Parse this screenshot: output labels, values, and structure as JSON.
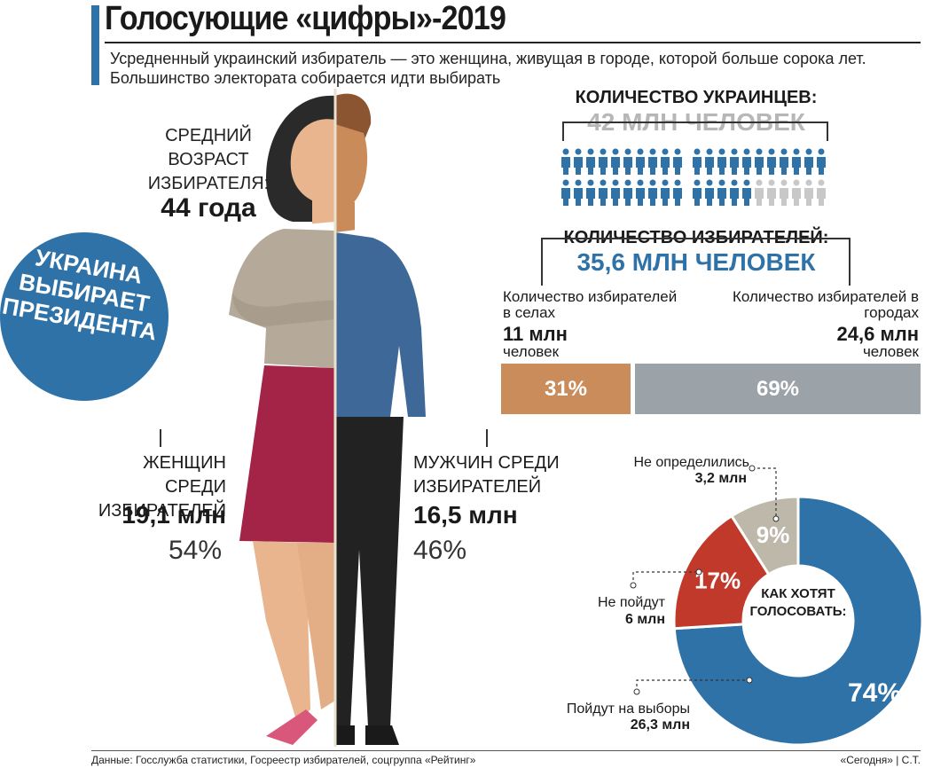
{
  "header": {
    "title": "Голосующие «цифры»-2019",
    "lead": "Усредненный украинский избиратель — это женщина, живущая в городе, которой больше сорока лет. Большинство электората собирается идти выбирать"
  },
  "age": {
    "label": "СРЕДНИЙ ВОЗРАСТ ИЗБИРАТЕЛЯ:",
    "value": "44 года"
  },
  "badge": {
    "text": "УКРАИНА ВЫБИРАЕТ ПРЕЗИДЕНТА"
  },
  "women": {
    "label": "ЖЕНЩИН СРЕДИ ИЗБИРАТЕЛЕЙ",
    "value": "19,1 млн",
    "percent": "54%"
  },
  "men": {
    "label": "МУЖЧИН СРЕДИ ИЗБИРАТЕЛЕЙ",
    "value": "16,5 млн",
    "percent": "46%"
  },
  "population": {
    "label": "КОЛИЧЕСТВО УКРАИНЦЕВ:",
    "value": "42 МЛН ЧЕЛОВЕК",
    "icons_total": 42,
    "icons_voters": 36
  },
  "electorate": {
    "label": "КОЛИЧЕСТВО ИЗБИРАТЕЛЕЙ:",
    "value": "35,6 МЛН ЧЕЛОВЕК",
    "villages": {
      "label": "Количество избирателей в селах",
      "value": "11 млн",
      "unit": "человек",
      "share": "31%"
    },
    "cities": {
      "label": "Количество избирателей в городах",
      "value": "24,6 млн",
      "unit": "человек",
      "share": "69%"
    }
  },
  "chart_data": {
    "type": "pie",
    "center_label": "КАК ХОТЯТ ГОЛОСОВАТЬ:",
    "slices": [
      {
        "name": "Пойдут на выборы",
        "value": 74,
        "label": "74%",
        "amount": "26,3 млн",
        "color": "#2f72a8"
      },
      {
        "name": "Не пойдут",
        "value": 17,
        "label": "17%",
        "amount": "6 млн",
        "color": "#c0392b"
      },
      {
        "name": "Не определились",
        "value": 9,
        "label": "9%",
        "amount": "3,2 млн",
        "color": "#bdb8a9"
      }
    ]
  },
  "footer": {
    "source": "Данные: Госслужба статистики, Госреестр избирателей, соцгруппа «Рейтинг»",
    "credit": "«Сегодня» | С.Т."
  },
  "colors": {
    "accent": "#2f72a8",
    "village": "#c98c5a",
    "city": "#9ba2a8",
    "icon_inactive": "#c8c8c8"
  }
}
